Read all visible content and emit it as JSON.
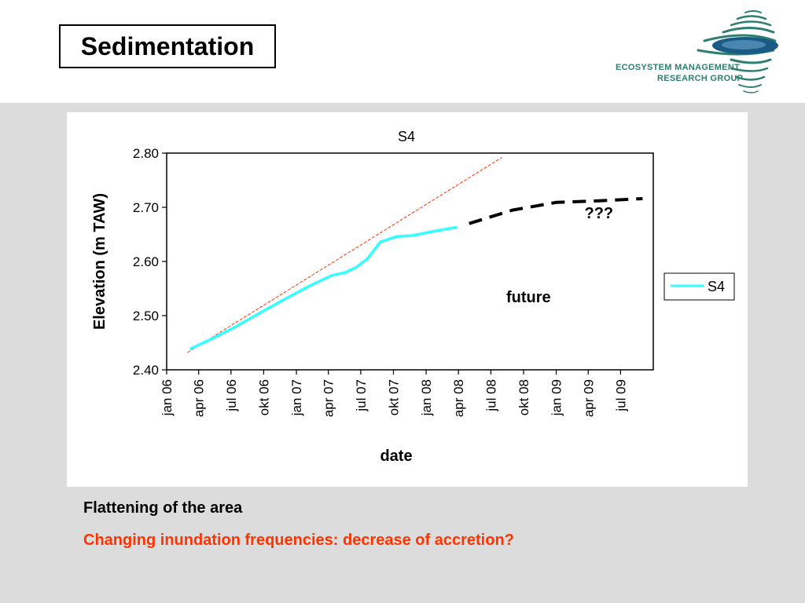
{
  "slide": {
    "title": "Sedimentation",
    "logo_line1": "ECOSYSTEM MANAGEMENT",
    "logo_line2": "RESEARCH GROUP",
    "bullet1": "Flattening of the area",
    "bullet2": "Changing inundation frequencies: decrease of accretion?",
    "colors": {
      "background": "#dcdcdc",
      "bullet2": "#ff3300",
      "logo": "#2e7f72"
    }
  },
  "chart_data": {
    "type": "line",
    "title": "S4",
    "xlabel": "date",
    "ylabel": "Elevation (m TAW)",
    "ylim": [
      2.4,
      2.8
    ],
    "yticks": [
      "2.40",
      "2.50",
      "2.60",
      "2.70",
      "2.80"
    ],
    "xlim": [
      "2006-01-01",
      "2009-10-01"
    ],
    "xticks": [
      {
        "date": "2006-01-01",
        "label": "jan 06"
      },
      {
        "date": "2006-04-01",
        "label": "apr 06"
      },
      {
        "date": "2006-07-01",
        "label": "jul 06"
      },
      {
        "date": "2006-10-01",
        "label": "okt 06"
      },
      {
        "date": "2007-01-01",
        "label": "jan 07"
      },
      {
        "date": "2007-04-01",
        "label": "apr 07"
      },
      {
        "date": "2007-07-01",
        "label": "jul 07"
      },
      {
        "date": "2007-10-01",
        "label": "okt 07"
      },
      {
        "date": "2008-01-01",
        "label": "jan 08"
      },
      {
        "date": "2008-04-01",
        "label": "apr 08"
      },
      {
        "date": "2008-07-01",
        "label": "jul 08"
      },
      {
        "date": "2008-10-01",
        "label": "okt 08"
      },
      {
        "date": "2009-01-01",
        "label": "jan 09"
      },
      {
        "date": "2009-04-01",
        "label": "apr 09"
      },
      {
        "date": "2009-07-01",
        "label": "jul 09"
      }
    ],
    "legend_position": "right",
    "grid": false,
    "series": [
      {
        "name": "S4",
        "color": "#33ffff",
        "points": [
          {
            "date": "2006-03-10",
            "y": 2.439
          },
          {
            "date": "2006-05-10",
            "y": 2.458
          },
          {
            "date": "2006-07-10",
            "y": 2.478
          },
          {
            "date": "2006-09-20",
            "y": 2.505
          },
          {
            "date": "2006-12-01",
            "y": 2.531
          },
          {
            "date": "2007-02-10",
            "y": 2.556
          },
          {
            "date": "2007-04-10",
            "y": 2.574
          },
          {
            "date": "2007-05-20",
            "y": 2.58
          },
          {
            "date": "2007-06-20",
            "y": 2.59
          },
          {
            "date": "2007-07-20",
            "y": 2.605
          },
          {
            "date": "2007-08-25",
            "y": 2.636
          },
          {
            "date": "2007-10-10",
            "y": 2.646
          },
          {
            "date": "2007-11-25",
            "y": 2.648
          },
          {
            "date": "2008-01-25",
            "y": 2.656
          },
          {
            "date": "2008-03-25",
            "y": 2.663
          }
        ]
      }
    ],
    "trend_line": {
      "color": "#ff3300",
      "style": "thin dashed",
      "start": {
        "date": "2006-03-01",
        "y": 2.432
      },
      "end": {
        "date": "2008-08-01",
        "y": 2.792
      }
    },
    "future_projection": {
      "color": "#000000",
      "style": "dashed",
      "points": [
        {
          "date": "2008-05-01",
          "y": 2.67
        },
        {
          "date": "2008-09-01",
          "y": 2.695
        },
        {
          "date": "2009-01-01",
          "y": 2.709
        },
        {
          "date": "2009-05-01",
          "y": 2.712
        },
        {
          "date": "2009-09-01",
          "y": 2.716
        }
      ]
    },
    "annotations": [
      {
        "text": "???",
        "date": "2009-05-01",
        "y": 2.68
      },
      {
        "text": "future",
        "date": "2008-10-15",
        "y": 2.525
      }
    ]
  }
}
